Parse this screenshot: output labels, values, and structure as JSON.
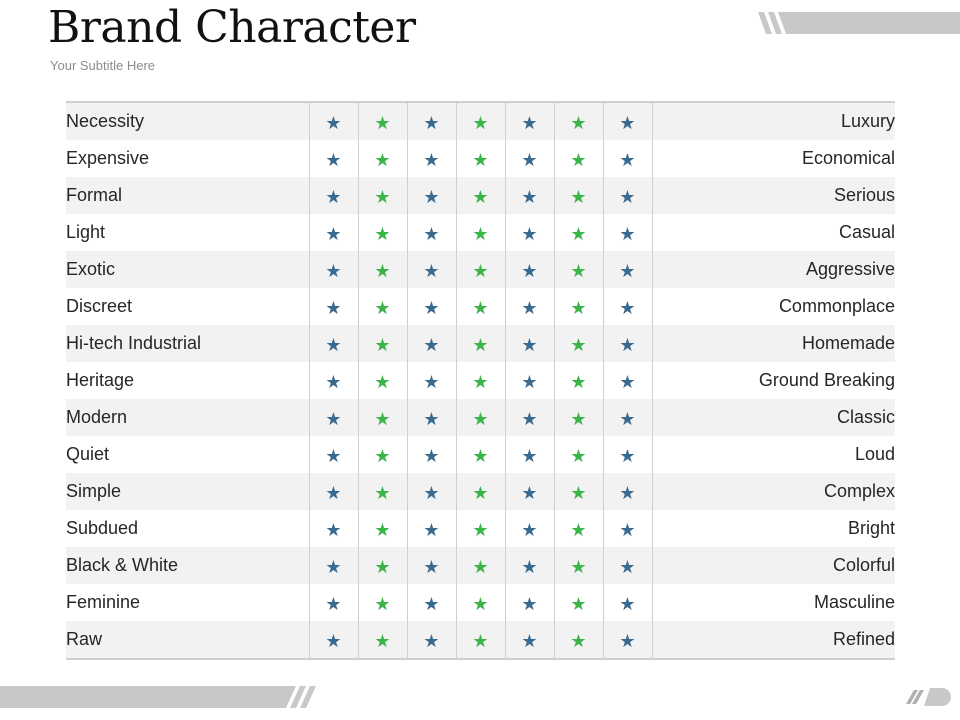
{
  "slide": {
    "title": "Brand Character",
    "subtitle": "Your Subtitle Here"
  },
  "colors": {
    "star_blue": "#3b6a8f",
    "star_green": "#3bb54a",
    "row_shade": "#f2f2f2",
    "deco_gray": "#c8c8c8"
  },
  "star_icon": "★",
  "star_pattern": [
    "blue",
    "green",
    "blue",
    "green",
    "blue",
    "green",
    "blue"
  ],
  "rows": [
    {
      "left": "Necessity",
      "right": "Luxury"
    },
    {
      "left": "Expensive",
      "right": "Economical"
    },
    {
      "left": "Formal",
      "right": "Serious"
    },
    {
      "left": "Light",
      "right": "Casual"
    },
    {
      "left": "Exotic",
      "right": "Aggressive"
    },
    {
      "left": "Discreet",
      "right": "Commonplace"
    },
    {
      "left": "Hi-tech Industrial",
      "right": "Homemade"
    },
    {
      "left": "Heritage",
      "right": "Ground Breaking"
    },
    {
      "left": "Modern",
      "right": "Classic"
    },
    {
      "left": "Quiet",
      "right": "Loud"
    },
    {
      "left": "Simple",
      "right": "Complex"
    },
    {
      "left": "Subdued",
      "right": "Bright"
    },
    {
      "left": "Black & White",
      "right": "Colorful"
    },
    {
      "left": "Feminine",
      "right": "Masculine"
    },
    {
      "left": "Raw",
      "right": "Refined"
    }
  ]
}
